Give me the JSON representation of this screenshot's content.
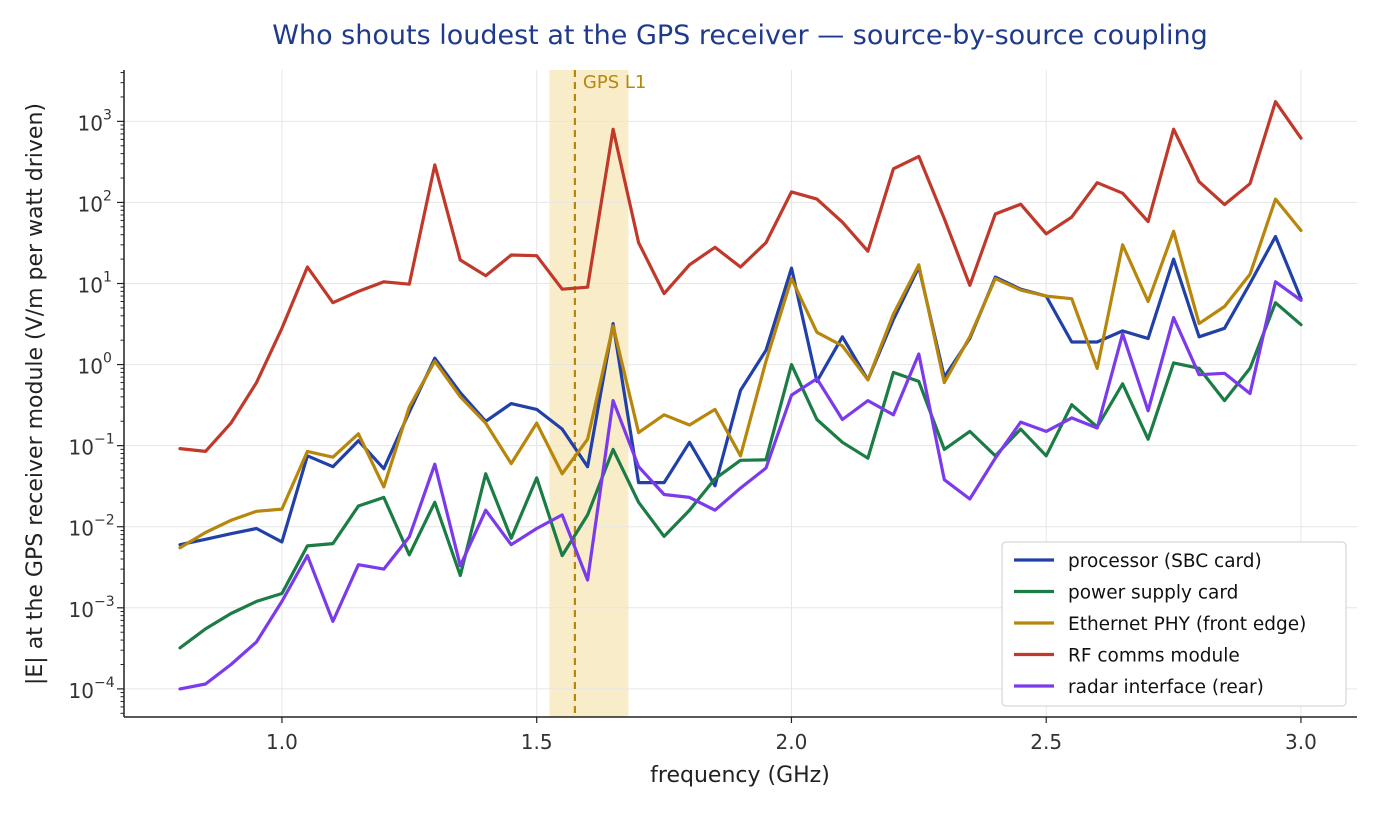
{
  "chart_data": {
    "type": "line",
    "title": "Who shouts loudest at the GPS receiver — source-by-source coupling",
    "xlabel": "frequency (GHz)",
    "ylabel": "|E| at the GPS receiver module (V/m per watt driven)",
    "xlim": [
      0.69,
      3.11
    ],
    "ylim": [
      4.5e-05,
      4300
    ],
    "yscale": "log",
    "grid": true,
    "legend_position": "lower-right",
    "x_ticks": [
      1.0,
      1.5,
      2.0,
      2.5,
      3.0
    ],
    "x_tick_labels": [
      "1.0",
      "1.5",
      "2.0",
      "2.5",
      "3.0"
    ],
    "y_ticks": [
      -4,
      -3,
      -2,
      -1,
      0,
      1,
      2,
      3
    ],
    "y_tick_labels": [
      "10",
      "10",
      "10",
      "10",
      "10",
      "10",
      "10",
      "10"
    ],
    "y_tick_exponents": [
      "−4",
      "−3",
      "−2",
      "−1",
      "0",
      "1",
      "2",
      "3"
    ],
    "annotation": {
      "label": "GPS L1",
      "x": 1.575,
      "band": [
        1.525,
        1.68
      ],
      "color": "#b8860b",
      "band_color": "#f9ecc8"
    },
    "x": [
      0.8,
      0.85,
      0.9,
      0.95,
      1.0,
      1.05,
      1.1,
      1.15,
      1.2,
      1.25,
      1.3,
      1.35,
      1.4,
      1.45,
      1.5,
      1.55,
      1.6,
      1.65,
      1.7,
      1.75,
      1.8,
      1.85,
      1.9,
      1.95,
      2.0,
      2.05,
      2.1,
      2.15,
      2.2,
      2.25,
      2.3,
      2.35,
      2.4,
      2.45,
      2.5,
      2.55,
      2.6,
      2.65,
      2.7,
      2.75,
      2.8,
      2.85,
      2.9,
      2.95,
      3.0
    ],
    "series": [
      {
        "name": "processor (SBC card)",
        "color": "#2140a8",
        "values": [
          0.006,
          0.007,
          0.0082,
          0.0095,
          0.0065,
          0.075,
          0.055,
          0.115,
          0.052,
          0.26,
          1.2,
          0.45,
          0.2,
          0.33,
          0.28,
          0.16,
          0.055,
          3.2,
          0.035,
          0.035,
          0.11,
          0.032,
          0.48,
          1.5,
          15.5,
          0.62,
          2.2,
          0.65,
          3.6,
          16,
          0.7,
          2.1,
          12,
          8.5,
          7,
          1.9,
          1.9,
          2.6,
          2.1,
          20,
          2.2,
          2.8,
          10,
          38,
          6.5
        ]
      },
      {
        "name": "power supply card",
        "color": "#1b7d45",
        "values": [
          0.00032,
          0.00055,
          0.00085,
          0.0012,
          0.0015,
          0.0058,
          0.0062,
          0.018,
          0.023,
          0.0045,
          0.02,
          0.0025,
          0.045,
          0.0072,
          0.04,
          0.0044,
          0.014,
          0.09,
          0.02,
          0.0076,
          0.016,
          0.039,
          0.066,
          0.067,
          1.0,
          0.21,
          0.11,
          0.07,
          0.8,
          0.62,
          0.09,
          0.15,
          0.075,
          0.16,
          0.075,
          0.32,
          0.17,
          0.58,
          0.12,
          1.05,
          0.9,
          0.36,
          0.9,
          5.8,
          3.1
        ]
      },
      {
        "name": "Ethernet PHY (front edge)",
        "color": "#b8860b",
        "values": [
          0.0055,
          0.0085,
          0.012,
          0.0155,
          0.0165,
          0.085,
          0.072,
          0.14,
          0.031,
          0.3,
          1.1,
          0.4,
          0.19,
          0.06,
          0.19,
          0.045,
          0.12,
          3.0,
          0.145,
          0.24,
          0.18,
          0.28,
          0.075,
          1.1,
          11.5,
          2.5,
          1.7,
          0.65,
          4.2,
          17,
          0.6,
          2.2,
          11.5,
          8.3,
          7,
          6.5,
          0.9,
          30,
          6,
          44,
          3.2,
          5.2,
          13,
          110,
          45
        ]
      },
      {
        "name": "RF comms module",
        "color": "#c0392b",
        "values": [
          0.092,
          0.085,
          0.19,
          0.6,
          2.8,
          16,
          5.8,
          8,
          10.5,
          9.8,
          290,
          19.5,
          12.5,
          22.5,
          22,
          8.5,
          9,
          800,
          32,
          7.5,
          17,
          28,
          16,
          32,
          135,
          110,
          57,
          25,
          260,
          370,
          63,
          9.5,
          72,
          95,
          41,
          66,
          175,
          130,
          58,
          800,
          180,
          94,
          170,
          1750,
          620
        ]
      },
      {
        "name": "radar interface (rear)",
        "color": "#7c3aed",
        "values": [
          0.0001,
          0.000115,
          0.0002,
          0.00038,
          0.0012,
          0.0044,
          0.00068,
          0.0034,
          0.003,
          0.0075,
          0.059,
          0.0033,
          0.016,
          0.006,
          0.0095,
          0.014,
          0.0022,
          0.36,
          0.055,
          0.025,
          0.023,
          0.016,
          0.03,
          0.053,
          0.42,
          0.67,
          0.21,
          0.36,
          0.24,
          1.35,
          0.038,
          0.022,
          0.07,
          0.195,
          0.15,
          0.22,
          0.165,
          2.4,
          0.27,
          3.8,
          0.75,
          0.78,
          0.44,
          10.5,
          6.2
        ]
      }
    ]
  }
}
